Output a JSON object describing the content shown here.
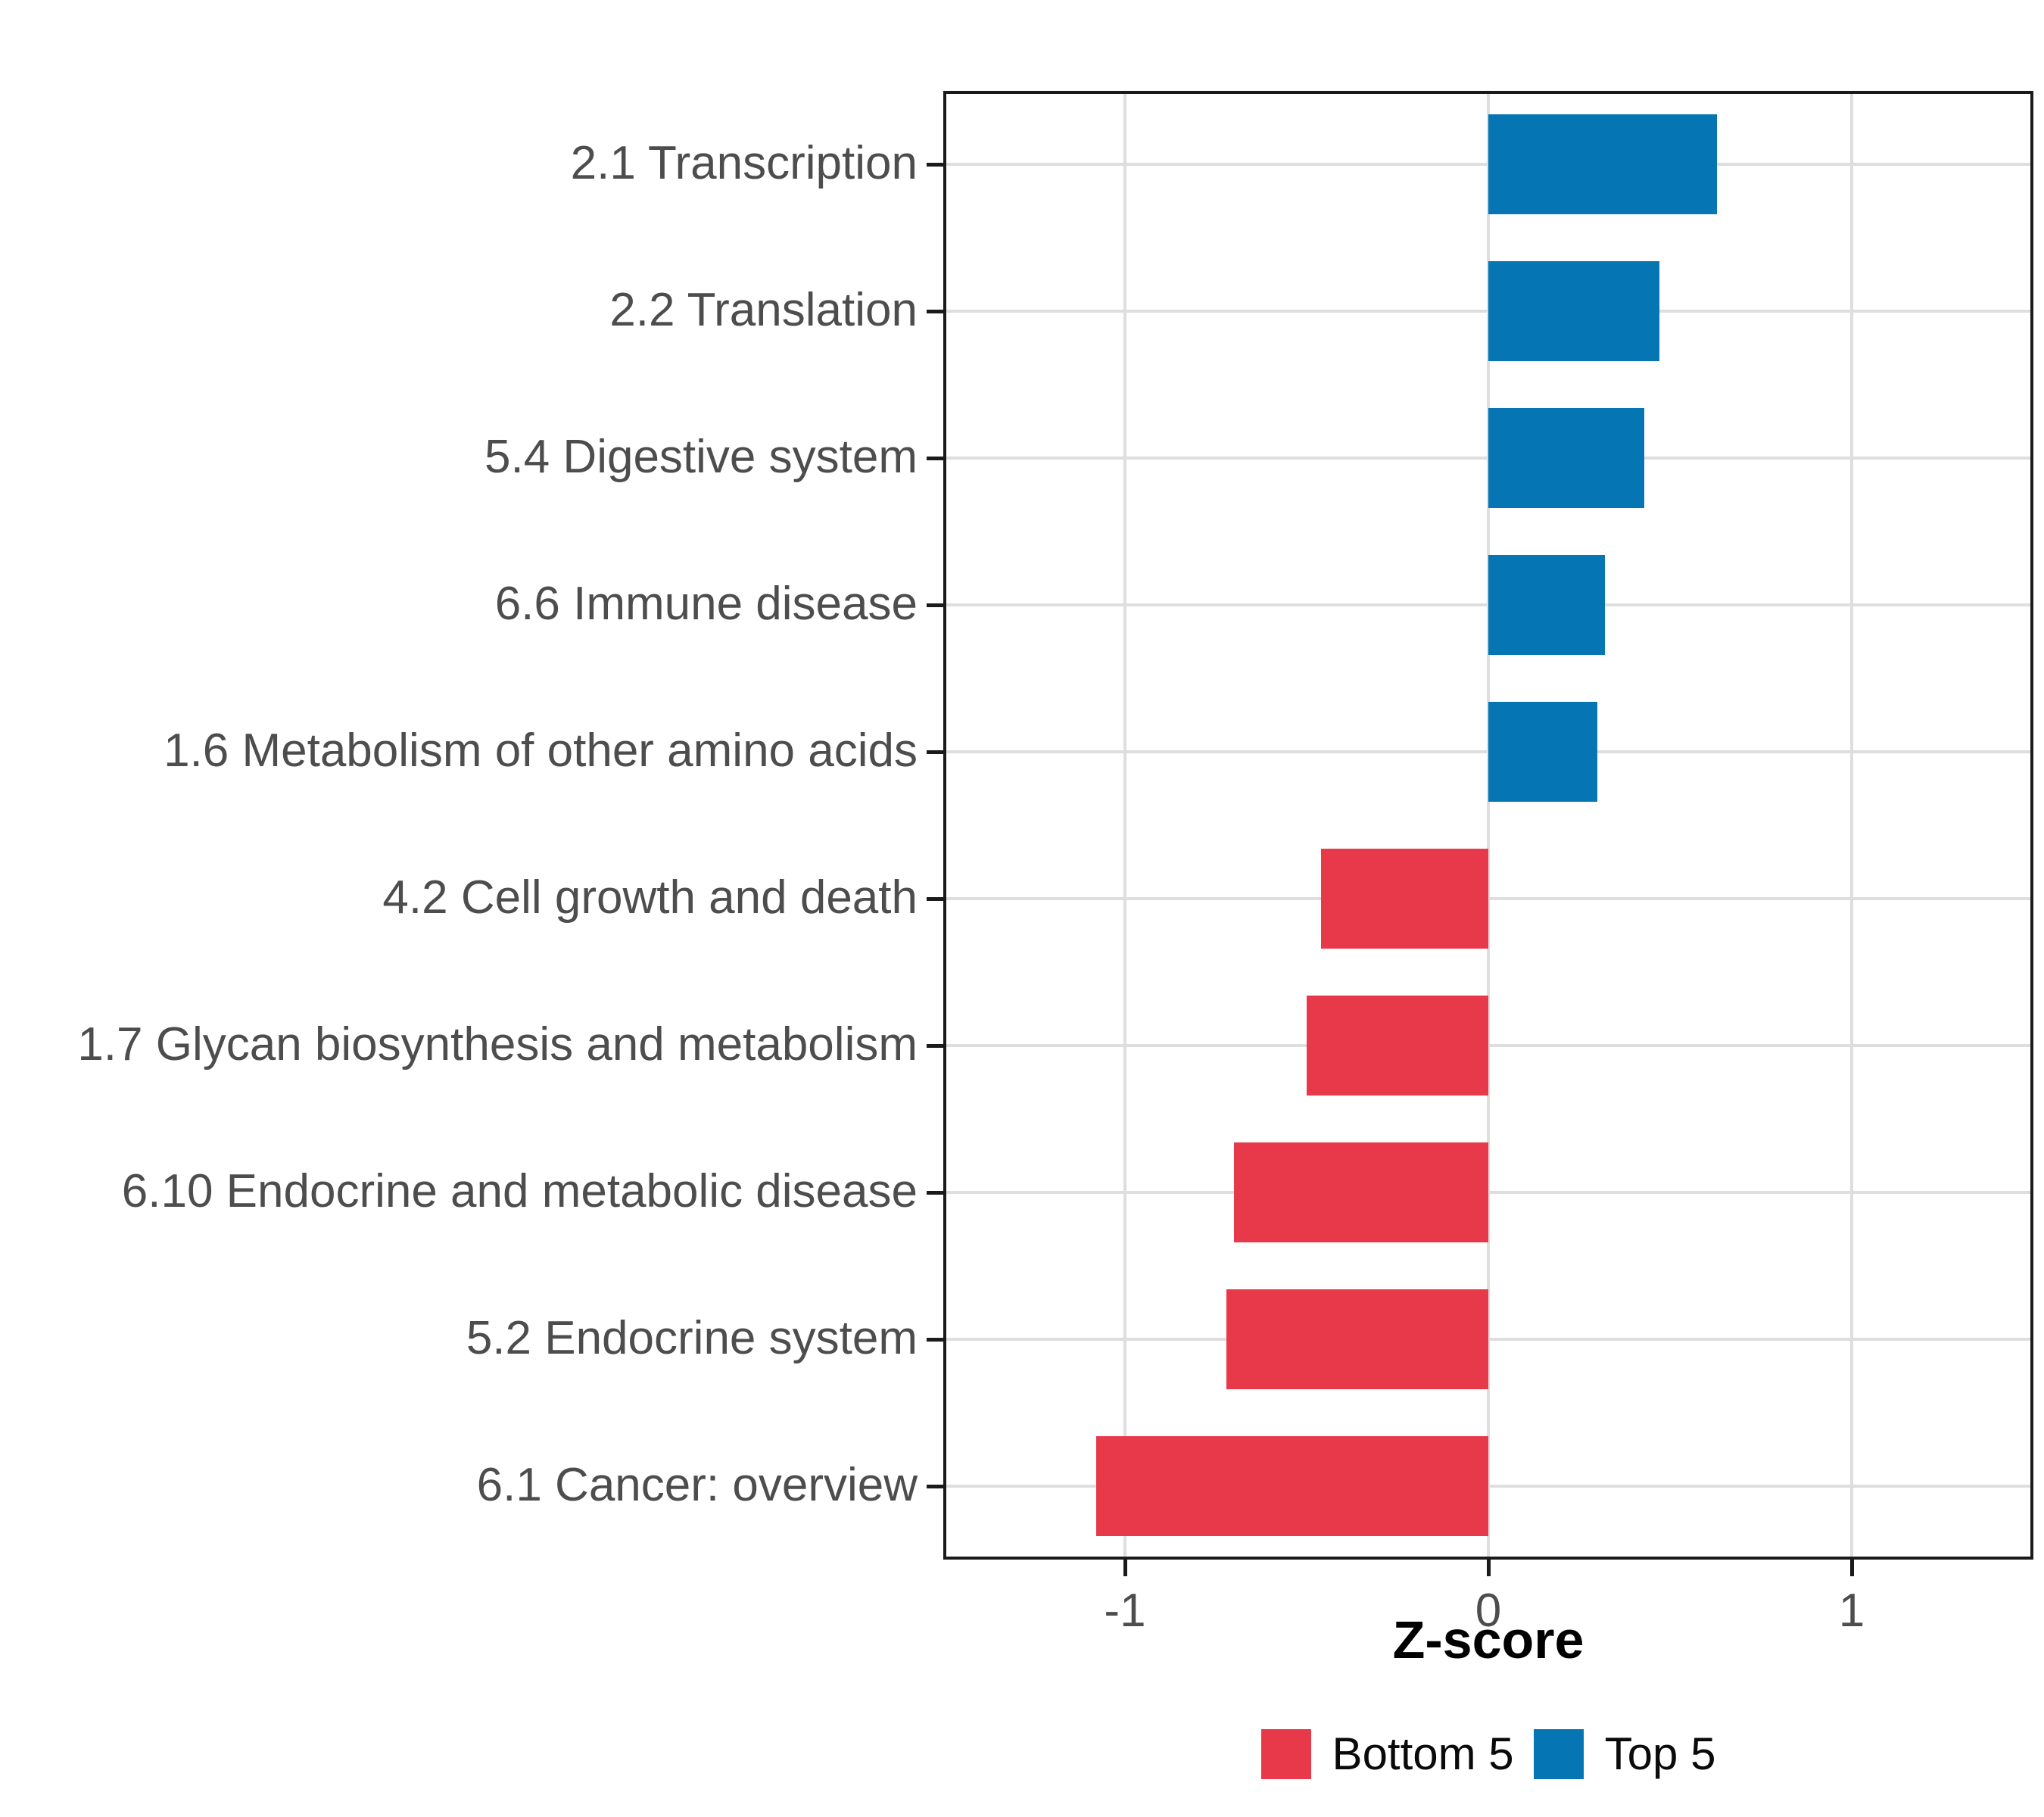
{
  "figure": {
    "background": "#FFFFFF",
    "axis_text_color": "#4D4D4D",
    "gridline_color": "#DEDEDE",
    "panel_border_color": "#1A1A1A"
  },
  "chart_data": {
    "type": "bar",
    "orientation": "horizontal",
    "title": "",
    "xlabel": "Z-score",
    "ylabel": "",
    "categories": [
      "2.1 Transcription",
      "2.2 Translation",
      "5.4 Digestive system",
      "6.6 Immune disease",
      "1.6 Metabolism of other amino acids",
      "4.2 Cell growth and death",
      "1.7 Glycan biosynthesis and metabolism",
      "6.10 Endocrine and metabolic disease",
      "5.2 Endocrine system",
      "6.1 Cancer: overview"
    ],
    "series": [
      {
        "name": "Z-score",
        "values": [
          0.63,
          0.47,
          0.43,
          0.32,
          0.3,
          -0.46,
          -0.5,
          -0.7,
          -0.72,
          -1.08
        ]
      }
    ],
    "groups": [
      "Top 5",
      "Top 5",
      "Top 5",
      "Top 5",
      "Top 5",
      "Bottom 5",
      "Bottom 5",
      "Bottom 5",
      "Bottom 5",
      "Bottom 5"
    ],
    "colors": {
      "Bottom 5": "#E8394A",
      "Top 5": "#0575B4"
    },
    "xlim": [
      -1.5,
      1.5
    ],
    "xticks": [
      -1,
      0,
      1
    ],
    "xtick_labels": [
      "-1",
      "0",
      "1"
    ],
    "grid": "major-only",
    "legend": {
      "position": "bottom",
      "items": [
        {
          "label": "Bottom 5",
          "color": "#E8394A"
        },
        {
          "label": "Top 5",
          "color": "#0575B4"
        }
      ]
    }
  }
}
